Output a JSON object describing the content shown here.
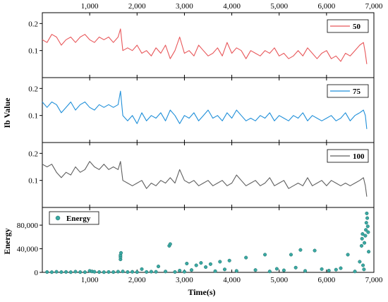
{
  "chart_data": {
    "type": "line",
    "panels_share_x": true,
    "x": {
      "label": "Time(s)",
      "xlim": [
        0,
        7000
      ],
      "ticks": [
        1000,
        2000,
        3000,
        4000,
        5000,
        6000,
        7000
      ],
      "tick_labels": [
        "1,000",
        "2,000",
        "3,000",
        "4,000",
        "5,000",
        "6,000",
        "7,000"
      ]
    },
    "y_label_shared_line_panels": "Ib Value",
    "panels": [
      {
        "type": "line",
        "name": "50",
        "color": "#e8575a",
        "ylim": [
          0,
          0.24
        ],
        "yticks": [
          0.1,
          0.2
        ],
        "ytick_labels": [
          "0.1",
          "0.2"
        ],
        "legend": "top-right",
        "points": [
          [
            0,
            0.14
          ],
          [
            100,
            0.13
          ],
          [
            200,
            0.16
          ],
          [
            300,
            0.15
          ],
          [
            400,
            0.12
          ],
          [
            500,
            0.14
          ],
          [
            600,
            0.15
          ],
          [
            700,
            0.13
          ],
          [
            800,
            0.15
          ],
          [
            900,
            0.16
          ],
          [
            1000,
            0.14
          ],
          [
            1100,
            0.13
          ],
          [
            1200,
            0.15
          ],
          [
            1300,
            0.14
          ],
          [
            1400,
            0.15
          ],
          [
            1500,
            0.13
          ],
          [
            1600,
            0.15
          ],
          [
            1650,
            0.18
          ],
          [
            1700,
            0.1
          ],
          [
            1800,
            0.11
          ],
          [
            1900,
            0.1
          ],
          [
            2000,
            0.12
          ],
          [
            2100,
            0.09
          ],
          [
            2200,
            0.1
          ],
          [
            2300,
            0.08
          ],
          [
            2400,
            0.11
          ],
          [
            2500,
            0.09
          ],
          [
            2600,
            0.12
          ],
          [
            2700,
            0.07
          ],
          [
            2800,
            0.1
          ],
          [
            2900,
            0.15
          ],
          [
            3000,
            0.09
          ],
          [
            3100,
            0.1
          ],
          [
            3200,
            0.08
          ],
          [
            3300,
            0.12
          ],
          [
            3400,
            0.1
          ],
          [
            3500,
            0.08
          ],
          [
            3600,
            0.09
          ],
          [
            3700,
            0.11
          ],
          [
            3800,
            0.08
          ],
          [
            3900,
            0.13
          ],
          [
            4000,
            0.09
          ],
          [
            4100,
            0.11
          ],
          [
            4200,
            0.1
          ],
          [
            4300,
            0.07
          ],
          [
            4400,
            0.1
          ],
          [
            4500,
            0.09
          ],
          [
            4600,
            0.08
          ],
          [
            4700,
            0.1
          ],
          [
            4800,
            0.09
          ],
          [
            4900,
            0.11
          ],
          [
            5000,
            0.08
          ],
          [
            5100,
            0.09
          ],
          [
            5200,
            0.07
          ],
          [
            5300,
            0.08
          ],
          [
            5400,
            0.1
          ],
          [
            5500,
            0.08
          ],
          [
            5600,
            0.11
          ],
          [
            5700,
            0.09
          ],
          [
            5800,
            0.07
          ],
          [
            5900,
            0.09
          ],
          [
            6000,
            0.1
          ],
          [
            6100,
            0.07
          ],
          [
            6200,
            0.08
          ],
          [
            6300,
            0.06
          ],
          [
            6400,
            0.09
          ],
          [
            6500,
            0.08
          ],
          [
            6600,
            0.1
          ],
          [
            6700,
            0.12
          ],
          [
            6780,
            0.13
          ],
          [
            6820,
            0.09
          ],
          [
            6850,
            0.05
          ]
        ]
      },
      {
        "type": "line",
        "name": "75",
        "color": "#1f8fd9",
        "ylim": [
          0,
          0.24
        ],
        "yticks": [
          0.1,
          0.2
        ],
        "ytick_labels": [
          "0.1",
          "0.2"
        ],
        "legend": "top-right",
        "points": [
          [
            0,
            0.15
          ],
          [
            100,
            0.13
          ],
          [
            200,
            0.15
          ],
          [
            300,
            0.14
          ],
          [
            400,
            0.11
          ],
          [
            500,
            0.13
          ],
          [
            600,
            0.15
          ],
          [
            700,
            0.12
          ],
          [
            800,
            0.14
          ],
          [
            900,
            0.15
          ],
          [
            1000,
            0.13
          ],
          [
            1100,
            0.12
          ],
          [
            1200,
            0.14
          ],
          [
            1300,
            0.13
          ],
          [
            1400,
            0.14
          ],
          [
            1500,
            0.13
          ],
          [
            1600,
            0.14
          ],
          [
            1650,
            0.19
          ],
          [
            1700,
            0.1
          ],
          [
            1800,
            0.08
          ],
          [
            1900,
            0.1
          ],
          [
            2000,
            0.07
          ],
          [
            2100,
            0.11
          ],
          [
            2200,
            0.08
          ],
          [
            2300,
            0.1
          ],
          [
            2400,
            0.09
          ],
          [
            2500,
            0.11
          ],
          [
            2600,
            0.08
          ],
          [
            2700,
            0.12
          ],
          [
            2800,
            0.1
          ],
          [
            2900,
            0.07
          ],
          [
            3000,
            0.1
          ],
          [
            3100,
            0.09
          ],
          [
            3200,
            0.11
          ],
          [
            3300,
            0.08
          ],
          [
            3400,
            0.1
          ],
          [
            3500,
            0.12
          ],
          [
            3600,
            0.09
          ],
          [
            3700,
            0.1
          ],
          [
            3800,
            0.08
          ],
          [
            3900,
            0.11
          ],
          [
            4000,
            0.09
          ],
          [
            4100,
            0.12
          ],
          [
            4200,
            0.1
          ],
          [
            4300,
            0.08
          ],
          [
            4400,
            0.09
          ],
          [
            4500,
            0.08
          ],
          [
            4600,
            0.1
          ],
          [
            4700,
            0.09
          ],
          [
            4800,
            0.11
          ],
          [
            4900,
            0.08
          ],
          [
            5000,
            0.1
          ],
          [
            5100,
            0.09
          ],
          [
            5200,
            0.08
          ],
          [
            5300,
            0.1
          ],
          [
            5400,
            0.09
          ],
          [
            5500,
            0.11
          ],
          [
            5600,
            0.08
          ],
          [
            5700,
            0.1
          ],
          [
            5800,
            0.09
          ],
          [
            5900,
            0.08
          ],
          [
            6000,
            0.09
          ],
          [
            6100,
            0.1
          ],
          [
            6200,
            0.08
          ],
          [
            6300,
            0.09
          ],
          [
            6400,
            0.11
          ],
          [
            6500,
            0.08
          ],
          [
            6600,
            0.1
          ],
          [
            6700,
            0.11
          ],
          [
            6780,
            0.12
          ],
          [
            6820,
            0.1
          ],
          [
            6850,
            0.05
          ]
        ]
      },
      {
        "type": "line",
        "name": "100",
        "color": "#5f5f5f",
        "ylim": [
          0,
          0.24
        ],
        "yticks": [
          0.1,
          0.2
        ],
        "ytick_labels": [
          "0.1",
          "0.2"
        ],
        "legend": "top-right",
        "points": [
          [
            0,
            0.16
          ],
          [
            100,
            0.15
          ],
          [
            200,
            0.16
          ],
          [
            300,
            0.13
          ],
          [
            400,
            0.11
          ],
          [
            500,
            0.13
          ],
          [
            600,
            0.12
          ],
          [
            700,
            0.15
          ],
          [
            800,
            0.13
          ],
          [
            900,
            0.14
          ],
          [
            1000,
            0.17
          ],
          [
            1100,
            0.15
          ],
          [
            1200,
            0.14
          ],
          [
            1300,
            0.16
          ],
          [
            1400,
            0.14
          ],
          [
            1500,
            0.15
          ],
          [
            1600,
            0.14
          ],
          [
            1650,
            0.17
          ],
          [
            1700,
            0.1
          ],
          [
            1800,
            0.09
          ],
          [
            1900,
            0.08
          ],
          [
            2000,
            0.09
          ],
          [
            2100,
            0.1
          ],
          [
            2200,
            0.07
          ],
          [
            2300,
            0.09
          ],
          [
            2400,
            0.08
          ],
          [
            2500,
            0.1
          ],
          [
            2600,
            0.09
          ],
          [
            2700,
            0.11
          ],
          [
            2800,
            0.09
          ],
          [
            2900,
            0.14
          ],
          [
            3000,
            0.1
          ],
          [
            3100,
            0.09
          ],
          [
            3200,
            0.1
          ],
          [
            3300,
            0.08
          ],
          [
            3400,
            0.09
          ],
          [
            3500,
            0.1
          ],
          [
            3600,
            0.08
          ],
          [
            3700,
            0.09
          ],
          [
            3800,
            0.1
          ],
          [
            3900,
            0.08
          ],
          [
            4000,
            0.09
          ],
          [
            4100,
            0.12
          ],
          [
            4200,
            0.1
          ],
          [
            4300,
            0.08
          ],
          [
            4400,
            0.09
          ],
          [
            4500,
            0.1
          ],
          [
            4600,
            0.08
          ],
          [
            4700,
            0.09
          ],
          [
            4800,
            0.11
          ],
          [
            4900,
            0.08
          ],
          [
            5000,
            0.09
          ],
          [
            5100,
            0.1
          ],
          [
            5200,
            0.07
          ],
          [
            5300,
            0.08
          ],
          [
            5400,
            0.09
          ],
          [
            5500,
            0.08
          ],
          [
            5600,
            0.11
          ],
          [
            5700,
            0.08
          ],
          [
            5800,
            0.09
          ],
          [
            5900,
            0.1
          ],
          [
            6000,
            0.08
          ],
          [
            6100,
            0.1
          ],
          [
            6200,
            0.09
          ],
          [
            6300,
            0.08
          ],
          [
            6400,
            0.09
          ],
          [
            6500,
            0.08
          ],
          [
            6600,
            0.09
          ],
          [
            6700,
            0.1
          ],
          [
            6780,
            0.11
          ],
          [
            6820,
            0.08
          ],
          [
            6850,
            0.04
          ]
        ]
      },
      {
        "type": "scatter",
        "name": "Energy",
        "color": "#3aa8a2",
        "ylabel": "Energy",
        "ylim": [
          0,
          110000
        ],
        "yticks": [
          0,
          40000,
          80000
        ],
        "ytick_labels": [
          "0",
          "40,000",
          "80,000"
        ],
        "legend": "top-left",
        "points": [
          [
            100,
            600
          ],
          [
            200,
            300
          ],
          [
            300,
            900
          ],
          [
            400,
            500
          ],
          [
            500,
            700
          ],
          [
            600,
            400
          ],
          [
            700,
            1200
          ],
          [
            800,
            500
          ],
          [
            900,
            300
          ],
          [
            1000,
            2500
          ],
          [
            1050,
            1500
          ],
          [
            1100,
            900
          ],
          [
            1200,
            600
          ],
          [
            1300,
            400
          ],
          [
            1400,
            700
          ],
          [
            1500,
            500
          ],
          [
            1600,
            1200
          ],
          [
            1650,
            22000
          ],
          [
            1650,
            26000
          ],
          [
            1650,
            29000
          ],
          [
            1660,
            33000
          ],
          [
            1700,
            1500
          ],
          [
            1800,
            600
          ],
          [
            1900,
            900
          ],
          [
            2000,
            500
          ],
          [
            2100,
            5500
          ],
          [
            2200,
            700
          ],
          [
            2300,
            1200
          ],
          [
            2400,
            900
          ],
          [
            2450,
            10000
          ],
          [
            2600,
            1400
          ],
          [
            2680,
            45000
          ],
          [
            2700,
            48000
          ],
          [
            2800,
            700
          ],
          [
            2900,
            3000
          ],
          [
            3000,
            1100
          ],
          [
            3050,
            15000
          ],
          [
            3150,
            4000
          ],
          [
            3250,
            12000
          ],
          [
            3350,
            16000
          ],
          [
            3450,
            9000
          ],
          [
            3550,
            14000
          ],
          [
            3650,
            2000
          ],
          [
            3750,
            18000
          ],
          [
            3850,
            5000
          ],
          [
            3950,
            20000
          ],
          [
            4100,
            2500
          ],
          [
            4300,
            25000
          ],
          [
            4500,
            4000
          ],
          [
            4700,
            30000
          ],
          [
            4800,
            1500
          ],
          [
            4950,
            6000
          ],
          [
            5100,
            3500
          ],
          [
            5250,
            30000
          ],
          [
            5350,
            8000
          ],
          [
            5450,
            38000
          ],
          [
            5550,
            2500
          ],
          [
            5750,
            37000
          ],
          [
            5900,
            5500
          ],
          [
            6050,
            3000
          ],
          [
            6200,
            4500
          ],
          [
            6300,
            7000
          ],
          [
            6450,
            30000
          ],
          [
            6600,
            1500
          ],
          [
            6700,
            18000
          ],
          [
            6740,
            45000
          ],
          [
            6750,
            57000
          ],
          [
            6760,
            65000
          ],
          [
            6770,
            12000
          ],
          [
            6790,
            5000
          ],
          [
            6800,
            50000
          ],
          [
            6820,
            62000
          ],
          [
            6830,
            72000
          ],
          [
            6840,
            84000
          ],
          [
            6850,
            100000
          ],
          [
            6860,
            92000
          ],
          [
            6870,
            78000
          ],
          [
            6880,
            68000
          ],
          [
            6890,
            35000
          ]
        ]
      }
    ]
  }
}
